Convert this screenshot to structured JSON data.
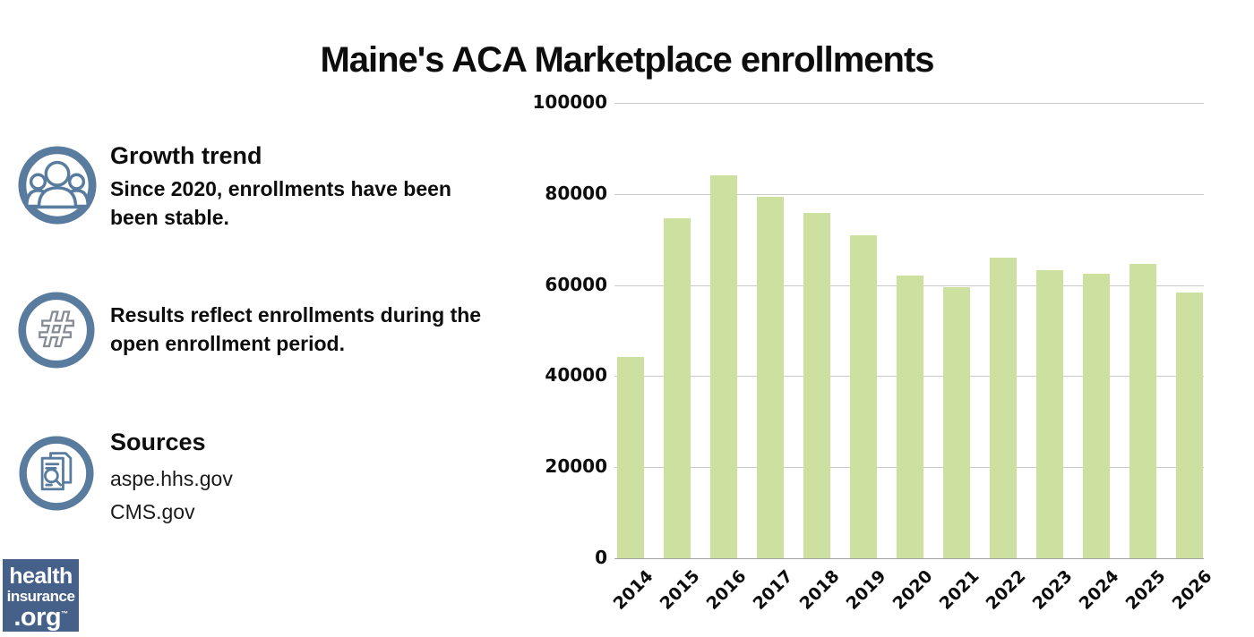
{
  "title": "Maine's ACA Marketplace enrollments",
  "info": {
    "growth": {
      "icon": "people-group-icon",
      "heading": "Growth trend",
      "body": "Since 2020, enrollments have been\nbeen stable."
    },
    "note": {
      "icon": "hashtag-icon",
      "body": "Results reflect enrollments during the\nopen enrollment period."
    },
    "sources": {
      "icon": "documents-search-icon",
      "heading": "Sources",
      "items": [
        "aspe.hhs.gov",
        "CMS.gov"
      ]
    }
  },
  "logo": {
    "line1": "health",
    "line2": "insurance",
    "line3": ".org",
    "tm": "TM"
  },
  "colors": {
    "bar": "#cce09f",
    "grid": "#cbcbcb",
    "axis": "#a3a3a3",
    "icon_blue": "#587b9e",
    "logo_bg": "#45618a",
    "text": "#0d0d0d"
  },
  "chart_data": {
    "type": "bar",
    "title": "Maine's ACA Marketplace enrollments",
    "categories": [
      "2014",
      "2015",
      "2016",
      "2017",
      "2018",
      "2019",
      "2020",
      "2021",
      "2022",
      "2023",
      "2024",
      "2025",
      "2026"
    ],
    "values": [
      44258,
      74624,
      84059,
      79407,
      75809,
      70987,
      62000,
      59600,
      66000,
      63200,
      62500,
      64700,
      58400
    ],
    "xlabel": "",
    "ylabel": "",
    "ylim": [
      0,
      100000
    ],
    "yticks": [
      0,
      20000,
      40000,
      60000,
      80000,
      100000
    ],
    "grid": true,
    "legend": "none",
    "bar_color": "#cce09f"
  }
}
